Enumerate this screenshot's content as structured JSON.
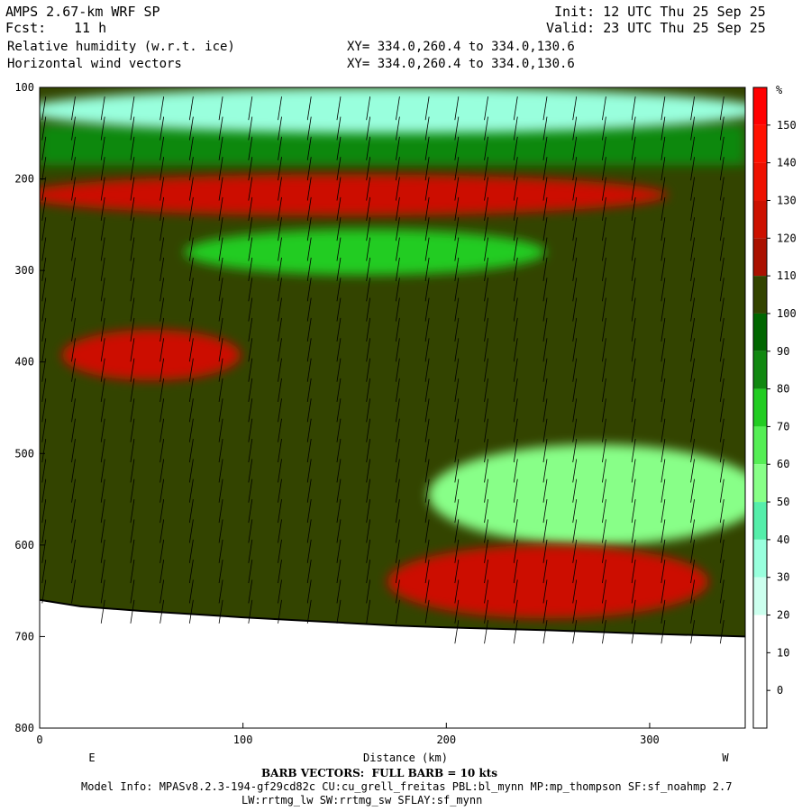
{
  "header": {
    "model": "AMPS 2.67-km WRF SP",
    "fcst_label": "Fcst:",
    "fcst_value": "11 h",
    "field1": "Relative humidity (w.r.t. ice)",
    "field2": "Horizontal wind vectors",
    "init": "Init: 12 UTC Thu 25 Sep 25",
    "valid": "Valid: 23 UTC Thu 25 Sep 25",
    "xy1": "XY= 334.0,260.4 to 334.0,130.6",
    "xy2": "XY= 334.0,260.4 to 334.0,130.6"
  },
  "footer": {
    "barb": "BARB VECTORS:  FULL BARB = 10 kts",
    "model_info": "Model Info: MPASv8.2.3-194-gf29cd82c CU:cu_grell_freitas PBL:bl_mynn MP:mp_thompson SF:sf_noahmp 2.7",
    "model_info2": "LW:rrtmg_lw SW:rrtmg_sw SFLAY:sf_mynn"
  },
  "chart_data": {
    "type": "heatmap",
    "title": "Relative humidity (w.r.t. ice)",
    "overlay": "Horizontal wind vectors (barbs)",
    "xlabel": "Distance (km)",
    "x_tick_labels": [
      "0",
      "100",
      "200",
      "300"
    ],
    "x_ticks": [
      0,
      100,
      200,
      300
    ],
    "xlim": [
      0,
      347
    ],
    "x_end_labels": {
      "left": "E",
      "right": "W"
    },
    "ylabel": "",
    "y_tick_labels": [
      "100",
      "200",
      "300",
      "400",
      "500",
      "600",
      "700",
      "800"
    ],
    "y_ticks": [
      100,
      200,
      300,
      400,
      500,
      600,
      700,
      800
    ],
    "ylim": [
      100,
      800
    ],
    "colorbar": {
      "unit": "%",
      "levels": [
        0,
        10,
        20,
        30,
        40,
        50,
        60,
        70,
        80,
        90,
        100,
        110,
        120,
        130,
        140,
        150
      ],
      "colors": [
        "#ffffff",
        "#ffffff",
        "#ffffff",
        "#ccffee",
        "#99ffdd",
        "#55eeaa",
        "#88ff88",
        "#55ee55",
        "#22cc22",
        "#118811",
        "#006600",
        "#334400",
        "#aa1100",
        "#cc1100",
        "#ee1100",
        "#ff1100",
        "#ff0000"
      ]
    },
    "terrain": {
      "x": [
        0,
        20,
        50,
        100,
        150,
        175,
        200,
        250,
        300,
        347
      ],
      "p": [
        660,
        667,
        672,
        679,
        685,
        688,
        690,
        693,
        697,
        700
      ]
    },
    "regions": [
      {
        "name": "dry-upper",
        "x": [
          0,
          347
        ],
        "p_top": 100,
        "p_bottom": 150,
        "value": 35
      },
      {
        "name": "moist-band-200",
        "x": [
          0,
          300
        ],
        "p_top": 195,
        "p_bottom": 240,
        "value": 120
      },
      {
        "name": "dry-tongue-280",
        "x": [
          80,
          240
        ],
        "p_top": 255,
        "p_bottom": 305,
        "value": 75
      },
      {
        "name": "moist-400",
        "x": [
          20,
          90
        ],
        "p_top": 365,
        "p_bottom": 420,
        "value": 120
      },
      {
        "name": "dry-lower-east",
        "x": [
          200,
          347
        ],
        "p_top": 490,
        "p_bottom": 600,
        "value": 55
      },
      {
        "name": "moist-near-sfc",
        "x": [
          180,
          320
        ],
        "p_top": 600,
        "p_bottom": 680,
        "value": 125
      }
    ],
    "barb_units": "kts"
  },
  "colorbar_labels": [
    "150",
    "140",
    "130",
    "120",
    "110",
    "100",
    "90",
    "80",
    "70",
    "60",
    "50",
    "40",
    "30",
    "20",
    "10",
    "0"
  ],
  "colorbar_unit": "%"
}
